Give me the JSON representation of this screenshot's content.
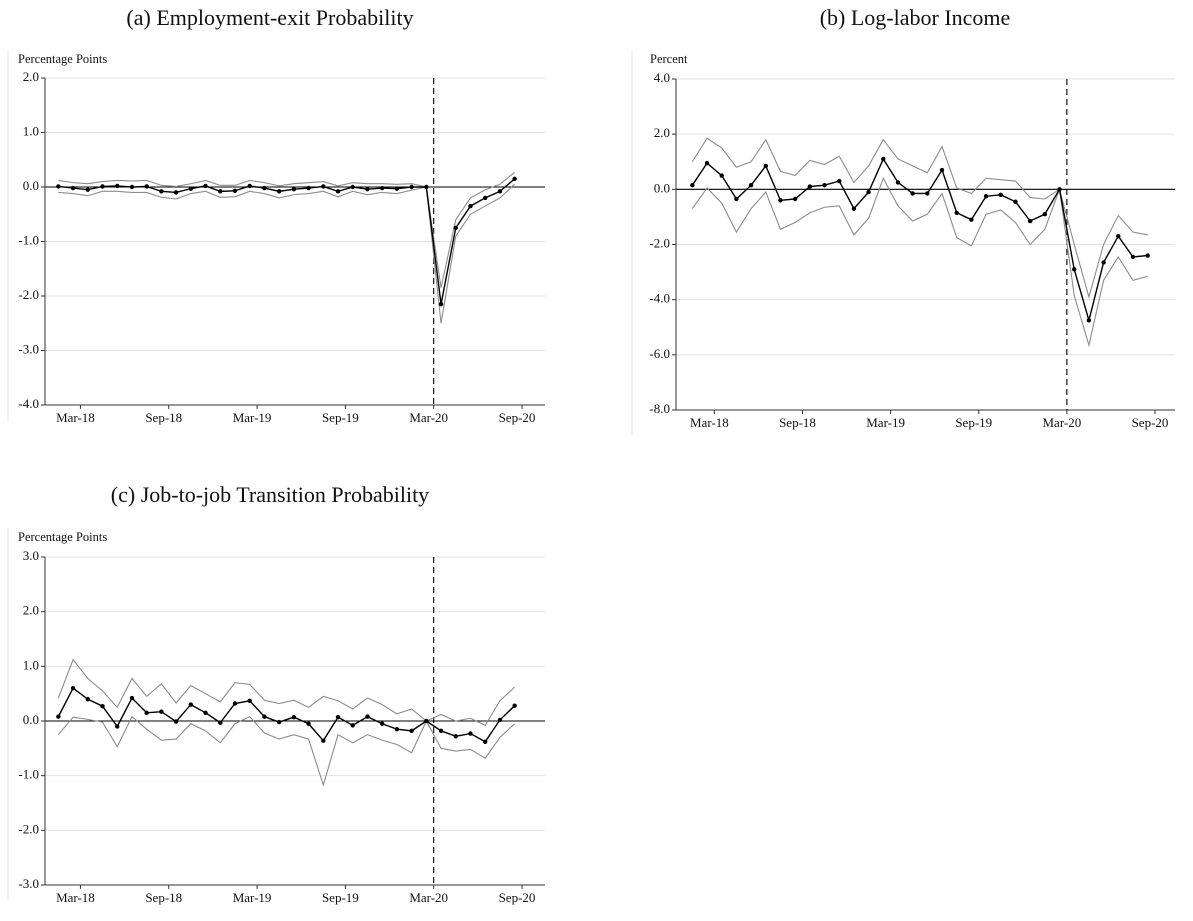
{
  "chart_data": [
    {
      "type": "line",
      "title": "(a) Employment-exit Probability",
      "y_label": "Percentage Points",
      "x": [
        "Jan-18",
        "Feb-18",
        "Mar-18",
        "Apr-18",
        "May-18",
        "Jun-18",
        "Jul-18",
        "Aug-18",
        "Sep-18",
        "Oct-18",
        "Nov-18",
        "Dec-18",
        "Jan-19",
        "Feb-19",
        "Mar-19",
        "Apr-19",
        "May-19",
        "Jun-19",
        "Jul-19",
        "Aug-19",
        "Sep-19",
        "Oct-19",
        "Nov-19",
        "Dec-19",
        "Jan-20",
        "Feb-20",
        "Mar-20",
        "Apr-20",
        "May-20",
        "Jun-20",
        "Jul-20",
        "Aug-20"
      ],
      "xticks": [
        "Mar-18",
        "Sep-18",
        "Mar-19",
        "Sep-19",
        "Mar-20",
        "Sep-20"
      ],
      "ylim": [
        -4,
        2
      ],
      "yticks": [
        {
          "value": -4,
          "label": "-4.0"
        },
        {
          "value": -3,
          "label": "-3.0"
        },
        {
          "value": -2,
          "label": "-2.0"
        },
        {
          "value": -1,
          "label": "-1.0"
        },
        {
          "value": 0,
          "label": "0.0"
        },
        {
          "value": 1,
          "label": "1.0"
        },
        {
          "value": 2,
          "label": "2.0"
        }
      ],
      "grid": true,
      "vline": "Mar-20",
      "series": [
        {
          "color": "#000000",
          "marker": true,
          "values": [
            0.01,
            -0.02,
            -0.05,
            0.01,
            0.02,
            0.0,
            0.01,
            -0.08,
            -0.1,
            -0.03,
            0.02,
            -0.08,
            -0.07,
            0.02,
            -0.02,
            -0.08,
            -0.04,
            -0.02,
            0.01,
            -0.08,
            0.0,
            -0.04,
            -0.02,
            -0.03,
            0.0,
            0.0,
            -2.15,
            -0.75,
            -0.35,
            -0.2,
            -0.08,
            0.15
          ]
        },
        {
          "color": "#8c8c8c",
          "marker": false,
          "values": [
            0.12,
            0.08,
            0.06,
            0.1,
            0.12,
            0.11,
            0.12,
            0.03,
            0.01,
            0.06,
            0.12,
            0.03,
            0.03,
            0.12,
            0.08,
            0.02,
            0.06,
            0.08,
            0.1,
            0.02,
            0.08,
            0.06,
            0.06,
            0.05,
            0.06,
            0.0,
            -1.85,
            -0.6,
            -0.2,
            -0.05,
            0.05,
            0.27
          ]
        },
        {
          "color": "#8c8c8c",
          "marker": false,
          "values": [
            -0.1,
            -0.12,
            -0.16,
            -0.08,
            -0.08,
            -0.1,
            -0.1,
            -0.19,
            -0.22,
            -0.12,
            -0.08,
            -0.19,
            -0.18,
            -0.08,
            -0.12,
            -0.2,
            -0.14,
            -0.12,
            -0.08,
            -0.18,
            -0.08,
            -0.14,
            -0.1,
            -0.12,
            -0.06,
            0.0,
            -2.5,
            -0.9,
            -0.5,
            -0.35,
            -0.2,
            0.05
          ]
        }
      ]
    },
    {
      "type": "line",
      "title": "(b) Log-labor Income",
      "y_label": "Percent",
      "x": [
        "Jan-18",
        "Feb-18",
        "Mar-18",
        "Apr-18",
        "May-18",
        "Jun-18",
        "Jul-18",
        "Aug-18",
        "Sep-18",
        "Oct-18",
        "Nov-18",
        "Dec-18",
        "Jan-19",
        "Feb-19",
        "Mar-19",
        "Apr-19",
        "May-19",
        "Jun-19",
        "Jul-19",
        "Aug-19",
        "Sep-19",
        "Oct-19",
        "Nov-19",
        "Dec-19",
        "Jan-20",
        "Feb-20",
        "Mar-20",
        "Apr-20",
        "May-20",
        "Jun-20",
        "Jul-20",
        "Aug-20"
      ],
      "xticks": [
        "Mar-18",
        "Sep-18",
        "Mar-19",
        "Sep-19",
        "Mar-20",
        "Sep-20"
      ],
      "ylim": [
        -8,
        4
      ],
      "yticks": [
        {
          "value": -8,
          "label": "-8.0"
        },
        {
          "value": -6,
          "label": "-6.0"
        },
        {
          "value": -4,
          "label": "-4.0"
        },
        {
          "value": -2,
          "label": "-2.0"
        },
        {
          "value": 0,
          "label": "0.0"
        },
        {
          "value": 2,
          "label": "2.0"
        },
        {
          "value": 4,
          "label": "4.0"
        }
      ],
      "grid": true,
      "vline": "Mar-20",
      "series": [
        {
          "color": "#000000",
          "marker": true,
          "values": [
            0.15,
            0.95,
            0.5,
            -0.35,
            0.15,
            0.85,
            -0.4,
            -0.35,
            0.1,
            0.15,
            0.3,
            -0.7,
            -0.1,
            1.1,
            0.25,
            -0.15,
            -0.15,
            0.7,
            -0.85,
            -1.1,
            -0.25,
            -0.2,
            -0.45,
            -1.15,
            -0.9,
            0.0,
            -2.9,
            -4.75,
            -2.65,
            -1.7,
            -2.45,
            -2.4
          ]
        },
        {
          "color": "#8c8c8c",
          "marker": false,
          "values": [
            1.0,
            1.85,
            1.5,
            0.8,
            1.0,
            1.8,
            0.65,
            0.5,
            1.05,
            0.9,
            1.2,
            0.25,
            0.85,
            1.8,
            1.1,
            0.85,
            0.6,
            1.55,
            0.05,
            -0.15,
            0.4,
            0.35,
            0.3,
            -0.3,
            -0.35,
            0.0,
            -2.0,
            -3.9,
            -2.0,
            -0.95,
            -1.55,
            -1.65
          ]
        },
        {
          "color": "#8c8c8c",
          "marker": false,
          "values": [
            -0.7,
            0.05,
            -0.5,
            -1.55,
            -0.7,
            -0.1,
            -1.45,
            -1.2,
            -0.85,
            -0.65,
            -0.6,
            -1.65,
            -1.05,
            0.4,
            -0.6,
            -1.15,
            -0.9,
            -0.15,
            -1.75,
            -2.05,
            -0.9,
            -0.75,
            -1.2,
            -2.0,
            -1.45,
            0.0,
            -3.85,
            -5.65,
            -3.3,
            -2.45,
            -3.3,
            -3.15
          ]
        }
      ]
    },
    {
      "type": "line",
      "title": "(c) Job-to-job Transition Probability",
      "y_label": "Percentage Points",
      "x": [
        "Jan-18",
        "Feb-18",
        "Mar-18",
        "Apr-18",
        "May-18",
        "Jun-18",
        "Jul-18",
        "Aug-18",
        "Sep-18",
        "Oct-18",
        "Nov-18",
        "Dec-18",
        "Jan-19",
        "Feb-19",
        "Mar-19",
        "Apr-19",
        "May-19",
        "Jun-19",
        "Jul-19",
        "Aug-19",
        "Sep-19",
        "Oct-19",
        "Nov-19",
        "Dec-19",
        "Jan-20",
        "Feb-20",
        "Mar-20",
        "Apr-20",
        "May-20",
        "Jun-20",
        "Jul-20",
        "Aug-20"
      ],
      "xticks": [
        "Mar-18",
        "Sep-18",
        "Mar-19",
        "Sep-19",
        "Mar-20",
        "Sep-20"
      ],
      "ylim": [
        -3,
        3
      ],
      "yticks": [
        {
          "value": -3,
          "label": "-3.0"
        },
        {
          "value": -2,
          "label": "-2.0"
        },
        {
          "value": -1,
          "label": "-1.0"
        },
        {
          "value": 0,
          "label": "0.0"
        },
        {
          "value": 1,
          "label": "1.0"
        },
        {
          "value": 2,
          "label": "2.0"
        },
        {
          "value": 3,
          "label": "3.0"
        }
      ],
      "grid": true,
      "vline": "Mar-20",
      "series": [
        {
          "color": "#000000",
          "marker": true,
          "values": [
            0.08,
            0.6,
            0.4,
            0.27,
            -0.1,
            0.42,
            0.15,
            0.17,
            -0.01,
            0.3,
            0.15,
            -0.03,
            0.32,
            0.37,
            0.08,
            -0.02,
            0.07,
            -0.05,
            -0.36,
            0.07,
            -0.08,
            0.08,
            -0.05,
            -0.15,
            -0.18,
            0.0,
            -0.18,
            -0.28,
            -0.23,
            -0.38,
            0.02,
            0.28
          ]
        },
        {
          "color": "#8c8c8c",
          "marker": false,
          "values": [
            0.42,
            1.12,
            0.78,
            0.55,
            0.25,
            0.78,
            0.45,
            0.68,
            0.33,
            0.65,
            0.5,
            0.35,
            0.7,
            0.67,
            0.38,
            0.32,
            0.38,
            0.25,
            0.45,
            0.37,
            0.22,
            0.42,
            0.3,
            0.13,
            0.22,
            0.0,
            0.12,
            0.0,
            0.05,
            -0.08,
            0.37,
            0.62
          ]
        },
        {
          "color": "#8c8c8c",
          "marker": false,
          "values": [
            -0.25,
            0.07,
            0.03,
            -0.02,
            -0.47,
            0.08,
            -0.15,
            -0.35,
            -0.33,
            -0.05,
            -0.18,
            -0.4,
            -0.05,
            0.08,
            -0.22,
            -0.33,
            -0.25,
            -0.33,
            -1.17,
            -0.25,
            -0.4,
            -0.25,
            -0.35,
            -0.43,
            -0.58,
            0.0,
            -0.5,
            -0.55,
            -0.52,
            -0.68,
            -0.3,
            -0.05
          ]
        }
      ]
    }
  ]
}
